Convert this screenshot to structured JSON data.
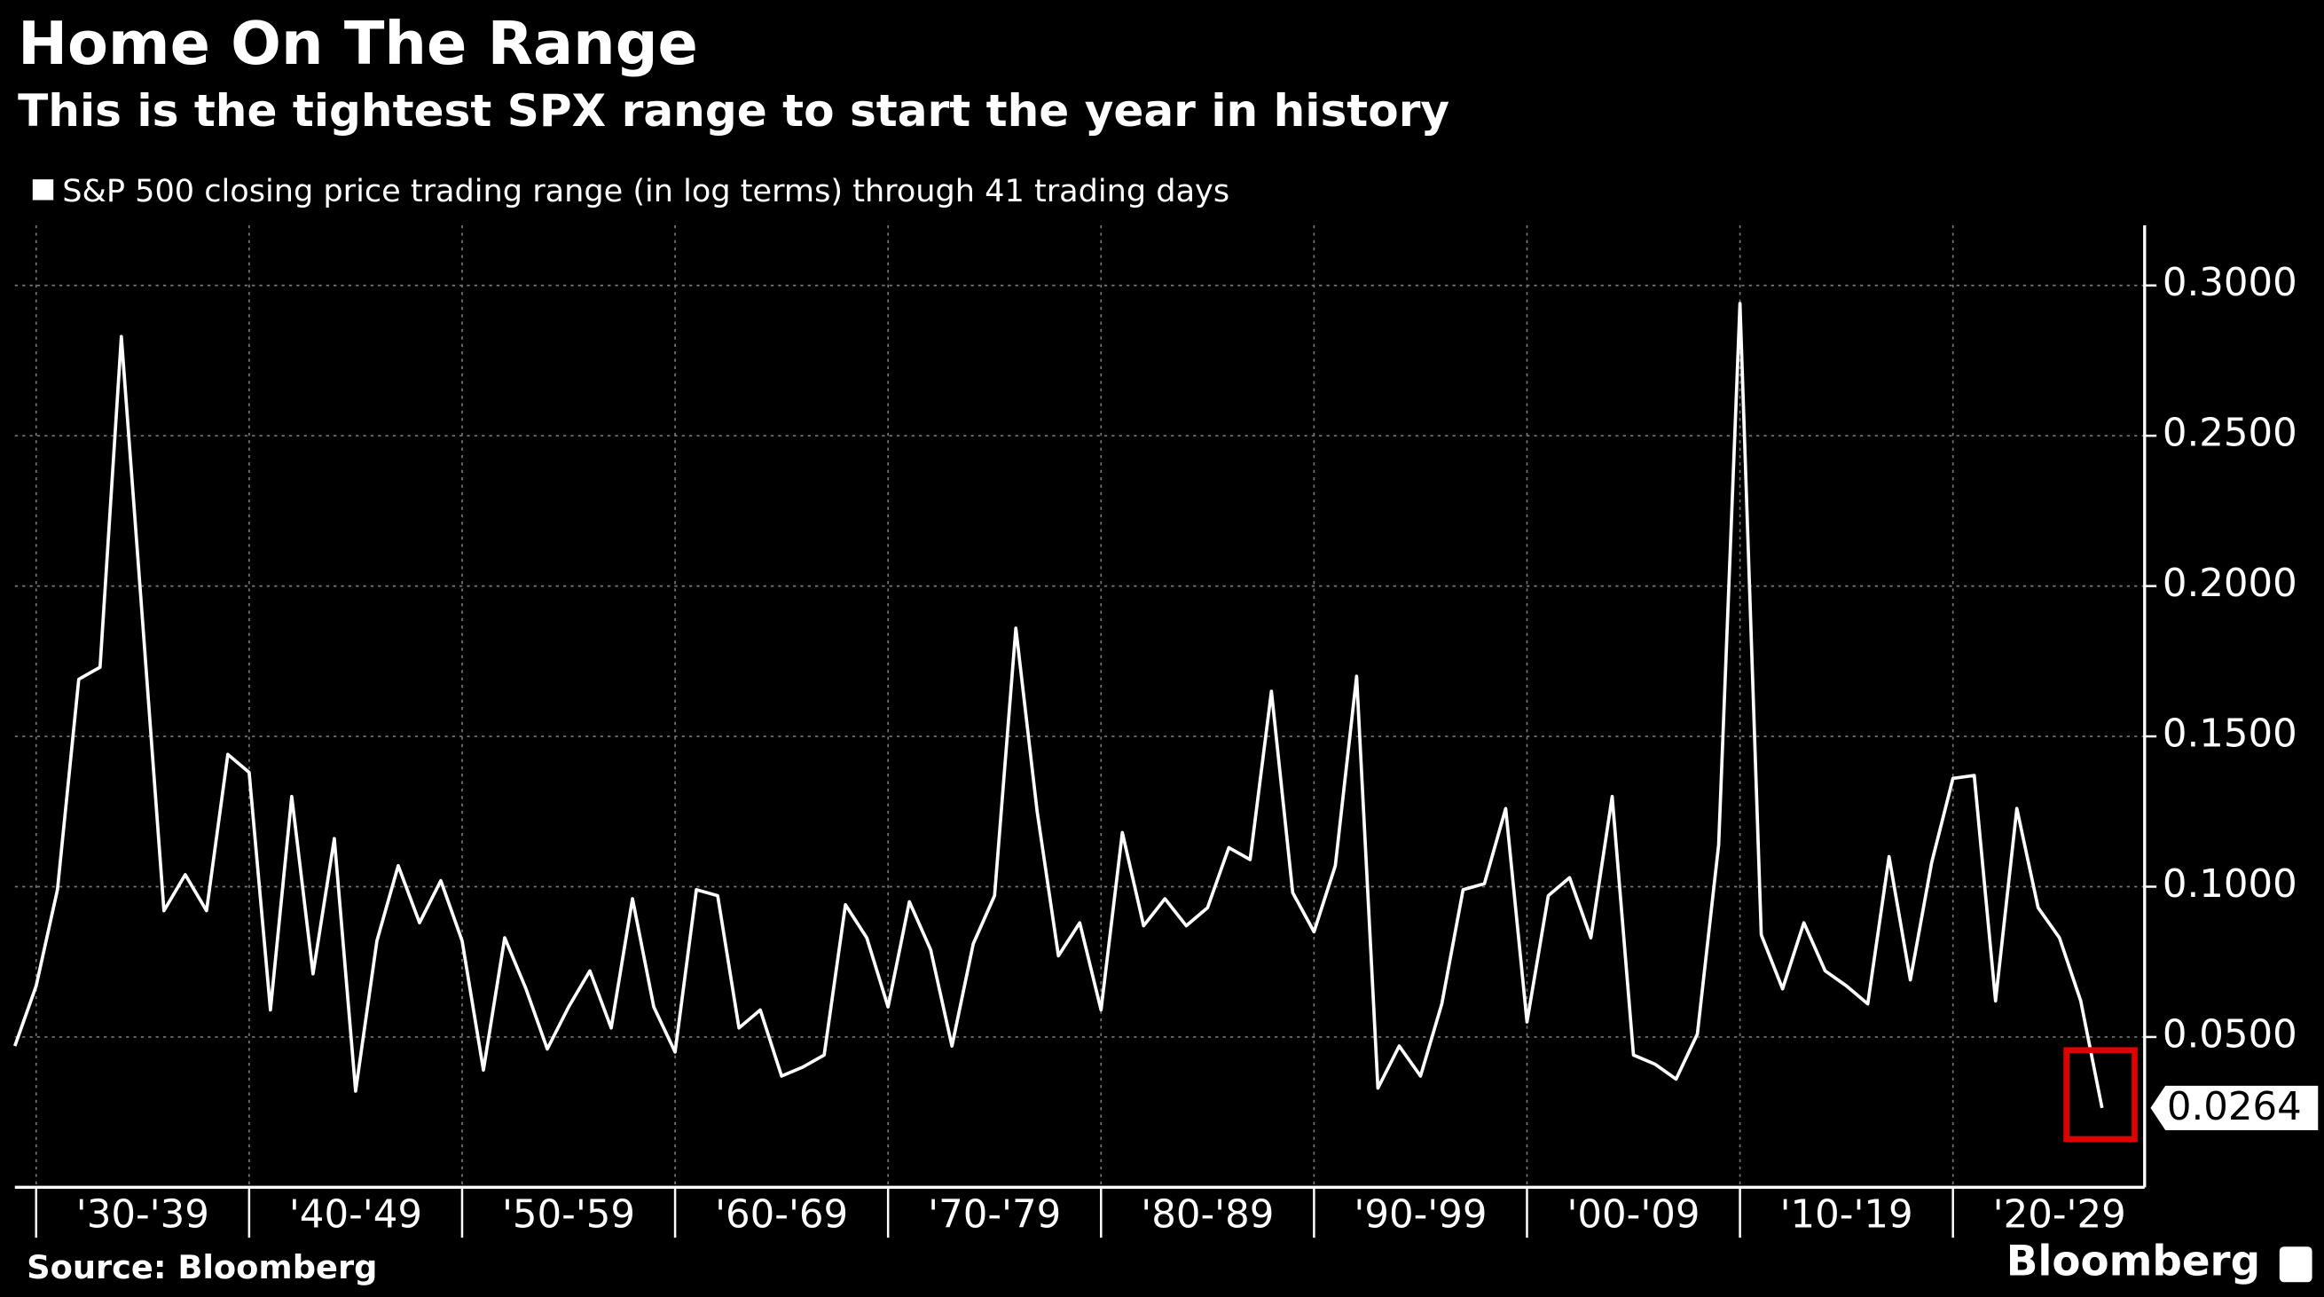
{
  "chart_data": {
    "type": "line",
    "title": "Home On The Range",
    "subtitle": "This is the tightest SPX range to start the year in history",
    "source": "Source: Bloomberg",
    "logo": "Bloomberg",
    "x": [
      1929,
      1930,
      1931,
      1932,
      1933,
      1934,
      1935,
      1936,
      1937,
      1938,
      1939,
      1940,
      1941,
      1942,
      1943,
      1944,
      1945,
      1946,
      1947,
      1948,
      1949,
      1950,
      1951,
      1952,
      1953,
      1954,
      1955,
      1956,
      1957,
      1958,
      1959,
      1960,
      1961,
      1962,
      1963,
      1964,
      1965,
      1966,
      1967,
      1968,
      1969,
      1970,
      1971,
      1972,
      1973,
      1974,
      1975,
      1976,
      1977,
      1978,
      1979,
      1980,
      1981,
      1982,
      1983,
      1984,
      1985,
      1986,
      1987,
      1988,
      1989,
      1990,
      1991,
      1992,
      1993,
      1994,
      1995,
      1996,
      1997,
      1998,
      1999,
      2000,
      2001,
      2002,
      2003,
      2004,
      2005,
      2006,
      2007,
      2008,
      2009,
      2010,
      2011,
      2012,
      2013,
      2014,
      2015,
      2016,
      2017,
      2018,
      2019,
      2020,
      2021,
      2022,
      2023,
      2024,
      2025,
      2026,
      2027
    ],
    "series": [
      {
        "name": "S&P 500 closing price trading range (in log terms) through 41 trading days",
        "color": "#ffffff",
        "values": [
          0.047,
          0.067,
          0.099,
          0.169,
          0.173,
          0.283,
          0.188,
          0.092,
          0.104,
          0.092,
          0.144,
          0.138,
          0.059,
          0.13,
          0.071,
          0.116,
          0.032,
          0.082,
          0.107,
          0.088,
          0.102,
          0.082,
          0.039,
          0.083,
          0.066,
          0.046,
          0.06,
          0.072,
          0.053,
          0.096,
          0.06,
          0.045,
          0.099,
          0.097,
          0.053,
          0.059,
          0.037,
          0.04,
          0.044,
          0.094,
          0.083,
          0.06,
          0.095,
          0.079,
          0.047,
          0.081,
          0.097,
          0.186,
          0.125,
          0.077,
          0.088,
          0.059,
          0.118,
          0.087,
          0.096,
          0.087,
          0.093,
          0.113,
          0.109,
          0.165,
          0.098,
          0.085,
          0.107,
          0.17,
          0.033,
          0.047,
          0.037,
          0.061,
          0.099,
          0.101,
          0.126,
          0.055,
          0.097,
          0.103,
          0.083,
          0.13,
          0.044,
          0.041,
          0.036,
          0.051,
          0.114,
          0.294,
          0.084,
          0.066,
          0.088,
          0.072,
          0.067,
          0.061,
          0.11,
          0.069,
          0.108,
          0.136,
          0.137,
          0.062,
          0.126,
          0.093,
          0.083,
          0.062,
          0.0264
        ]
      }
    ],
    "xlim": [
      1929,
      2029
    ],
    "xticks": [
      {
        "value": 1930,
        "label": "'30-'39"
      },
      {
        "value": 1940,
        "label": "'40-'49"
      },
      {
        "value": 1950,
        "label": "'50-'59"
      },
      {
        "value": 1960,
        "label": "'60-'69"
      },
      {
        "value": 1970,
        "label": "'70-'79"
      },
      {
        "value": 1980,
        "label": "'80-'89"
      },
      {
        "value": 1990,
        "label": "'90-'99"
      },
      {
        "value": 2000,
        "label": "'00-'09"
      },
      {
        "value": 2010,
        "label": "'10-'19"
      },
      {
        "value": 2020,
        "label": "'20-'29"
      }
    ],
    "ylim": [
      0,
      0.32
    ],
    "yticks": [
      {
        "value": 0.05,
        "label": "0.0500"
      },
      {
        "value": 0.1,
        "label": "0.1000"
      },
      {
        "value": 0.15,
        "label": "0.1500"
      },
      {
        "value": 0.2,
        "label": "0.2000"
      },
      {
        "value": 0.25,
        "label": "0.2500"
      },
      {
        "value": 0.3,
        "label": "0.3000"
      }
    ],
    "grid": true,
    "highlight_color": "#e00000"
  }
}
